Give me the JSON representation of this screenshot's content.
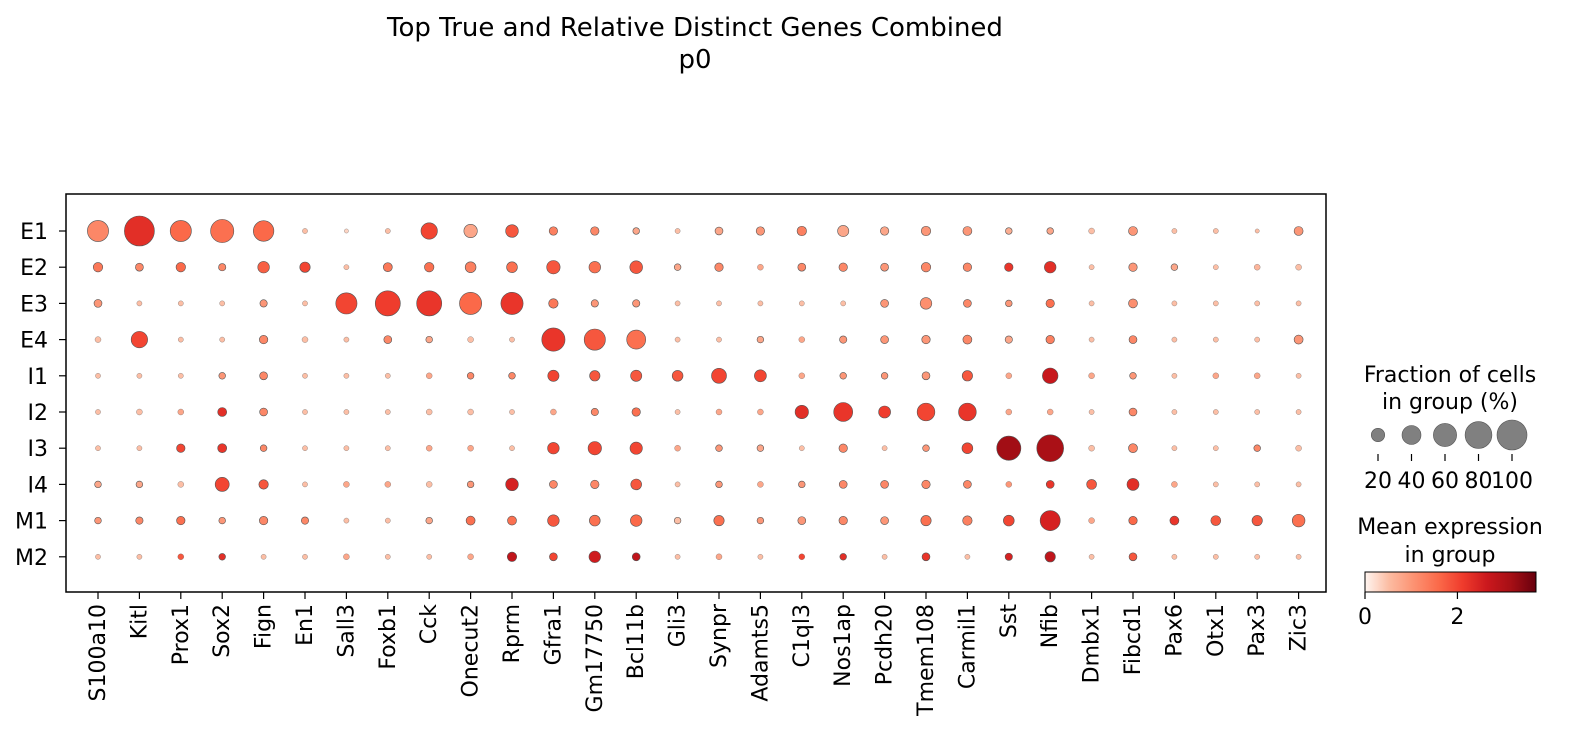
{
  "chart_data": {
    "type": "dotplot",
    "title": "Top True and Relative Distinct Genes Combined",
    "subtitle": "p0",
    "genes": [
      "S100a10",
      "Kitl",
      "Prox1",
      "Sox2",
      "Fign",
      "En1",
      "Sall3",
      "Foxb1",
      "Cck",
      "Onecut2",
      "Rprm",
      "Gfra1",
      "Gm17750",
      "Bcl11b",
      "Gli3",
      "Synpr",
      "Adamts5",
      "C1ql3",
      "Nos1ap",
      "Pcdh20",
      "Tmem108",
      "Carmil1",
      "Sst",
      "Nfib",
      "Dmbx1",
      "Fibcd1",
      "Pax6",
      "Otx1",
      "Pax3",
      "Zic3"
    ],
    "groups": [
      "E1",
      "E2",
      "E3",
      "E4",
      "I1",
      "I2",
      "I3",
      "I4",
      "M1",
      "M2"
    ],
    "fraction_pct": [
      [
        50,
        100,
        50,
        60,
        47,
        3,
        2,
        3,
        30,
        20,
        18,
        8,
        8,
        5,
        3,
        7,
        8,
        10,
        14,
        8,
        10,
        9,
        5,
        5,
        4,
        9,
        3,
        3,
        2,
        9
      ],
      [
        10,
        7,
        10,
        6,
        15,
        12,
        3,
        9,
        10,
        13,
        13,
        20,
        15,
        18,
        5,
        8,
        4,
        7,
        8,
        7,
        10,
        8,
        8,
        15,
        3,
        8,
        5,
        3,
        4,
        4
      ],
      [
        7,
        3,
        3,
        3,
        6,
        3,
        50,
        70,
        70,
        55,
        55,
        10,
        6,
        6,
        3,
        3,
        3,
        3,
        3,
        7,
        15,
        7,
        5,
        8,
        3,
        9,
        3,
        3,
        3,
        3
      ],
      [
        4,
        30,
        3,
        3,
        8,
        4,
        3,
        7,
        5,
        4,
        3,
        60,
        50,
        40,
        3,
        3,
        5,
        4,
        6,
        7,
        8,
        9,
        6,
        8,
        3,
        7,
        3,
        3,
        3,
        9
      ],
      [
        3,
        3,
        3,
        5,
        7,
        3,
        3,
        3,
        4,
        5,
        5,
        14,
        12,
        14,
        13,
        25,
        16,
        4,
        5,
        5,
        7,
        12,
        4,
        27,
        4,
        5,
        3,
        4,
        4,
        3
      ],
      [
        3,
        4,
        4,
        9,
        7,
        3,
        3,
        3,
        4,
        4,
        3,
        4,
        6,
        8,
        3,
        4,
        4,
        20,
        40,
        16,
        35,
        35,
        4,
        4,
        3,
        7,
        3,
        3,
        3,
        3
      ],
      [
        3,
        3,
        8,
        9,
        5,
        3,
        3,
        3,
        4,
        4,
        3,
        15,
        20,
        17,
        4,
        5,
        5,
        3,
        8,
        3,
        5,
        13,
        65,
        80,
        4,
        9,
        3,
        3,
        5,
        4
      ],
      [
        5,
        5,
        4,
        22,
        10,
        3,
        4,
        4,
        4,
        5,
        18,
        7,
        8,
        13,
        3,
        5,
        4,
        5,
        7,
        7,
        8,
        7,
        4,
        7,
        11,
        16,
        4,
        3,
        3,
        3
      ],
      [
        5,
        6,
        8,
        5,
        8,
        6,
        3,
        3,
        5,
        9,
        9,
        15,
        13,
        15,
        5,
        12,
        5,
        7,
        8,
        7,
        12,
        10,
        13,
        45,
        4,
        8,
        9,
        11,
        12,
        18
      ],
      [
        3,
        3,
        4,
        5,
        3,
        3,
        4,
        3,
        3,
        4,
        10,
        7,
        15,
        7,
        3,
        4,
        3,
        4,
        5,
        3,
        7,
        3,
        6,
        12,
        3,
        7,
        3,
        3,
        3,
        3
      ]
    ],
    "mean_expression": [
      [
        1.2,
        2.3,
        1.6,
        1.5,
        1.6,
        0.5,
        0.3,
        0.5,
        2.0,
        0.8,
        1.8,
        1.3,
        1.2,
        0.8,
        0.5,
        0.8,
        1.0,
        1.3,
        0.8,
        0.8,
        1.0,
        1.0,
        0.7,
        0.8,
        0.5,
        1.0,
        0.5,
        0.5,
        0.5,
        1.0
      ],
      [
        1.4,
        1.2,
        1.6,
        1.2,
        1.7,
        2.0,
        0.5,
        1.4,
        1.5,
        1.3,
        1.5,
        1.8,
        1.5,
        1.8,
        0.8,
        1.2,
        0.8,
        1.2,
        1.2,
        1.0,
        1.2,
        1.2,
        2.2,
        2.3,
        0.5,
        1.0,
        0.8,
        0.5,
        0.6,
        0.5
      ],
      [
        1.0,
        0.5,
        0.5,
        0.5,
        1.0,
        0.5,
        2.0,
        2.1,
        2.2,
        1.6,
        2.2,
        1.4,
        1.0,
        1.0,
        0.5,
        0.5,
        0.5,
        0.5,
        0.5,
        1.0,
        1.1,
        1.2,
        1.0,
        1.5,
        0.5,
        1.1,
        0.5,
        0.5,
        0.5,
        0.5
      ],
      [
        0.5,
        2.0,
        0.5,
        0.5,
        1.2,
        0.5,
        0.5,
        1.2,
        0.8,
        0.5,
        0.5,
        2.2,
        1.8,
        1.5,
        0.5,
        0.5,
        0.8,
        0.8,
        1.0,
        1.0,
        1.0,
        1.2,
        0.8,
        1.3,
        0.5,
        1.2,
        0.5,
        0.5,
        0.5,
        1.0
      ],
      [
        0.5,
        0.5,
        0.5,
        1.0,
        1.2,
        0.5,
        0.5,
        0.5,
        0.8,
        1.2,
        1.2,
        2.0,
        1.8,
        1.8,
        1.8,
        2.0,
        2.0,
        0.8,
        1.0,
        1.0,
        1.0,
        1.8,
        0.8,
        2.7,
        0.8,
        1.0,
        0.5,
        0.8,
        0.8,
        0.5
      ],
      [
        0.5,
        0.5,
        0.8,
        2.3,
        1.2,
        0.5,
        0.5,
        0.5,
        0.5,
        0.5,
        0.5,
        0.8,
        1.2,
        1.5,
        0.5,
        0.8,
        0.8,
        2.3,
        2.2,
        2.1,
        2.0,
        2.2,
        0.8,
        0.8,
        0.5,
        1.2,
        0.5,
        0.5,
        0.5,
        0.5
      ],
      [
        0.5,
        0.5,
        2.0,
        2.2,
        1.2,
        0.5,
        0.5,
        0.5,
        0.8,
        0.8,
        0.5,
        2.0,
        2.0,
        2.0,
        0.8,
        1.0,
        0.8,
        0.5,
        1.2,
        0.5,
        1.0,
        2.0,
        3.2,
        3.1,
        0.5,
        1.2,
        0.5,
        0.5,
        1.2,
        0.5
      ],
      [
        0.8,
        0.8,
        0.5,
        2.0,
        1.8,
        0.5,
        0.8,
        0.8,
        0.5,
        1.0,
        2.5,
        1.2,
        1.2,
        1.8,
        0.5,
        1.0,
        0.8,
        1.0,
        1.2,
        1.2,
        1.2,
        1.2,
        1.0,
        2.2,
        1.8,
        2.3,
        0.8,
        0.5,
        0.5,
        0.5
      ],
      [
        1.0,
        1.2,
        1.5,
        1.0,
        1.2,
        1.2,
        0.5,
        0.5,
        0.8,
        1.5,
        1.5,
        1.8,
        1.5,
        1.6,
        0.5,
        1.5,
        1.0,
        1.0,
        1.2,
        1.0,
        1.5,
        1.3,
        2.0,
        2.5,
        0.8,
        1.6,
        2.2,
        1.8,
        1.8,
        1.5
      ],
      [
        0.5,
        0.5,
        1.8,
        2.3,
        0.5,
        0.5,
        0.8,
        0.5,
        0.5,
        0.8,
        2.8,
        2.0,
        2.6,
        2.8,
        0.5,
        0.8,
        0.5,
        2.0,
        2.3,
        0.5,
        2.2,
        0.5,
        2.5,
        2.8,
        0.5,
        1.8,
        0.5,
        0.5,
        0.5,
        0.5
      ]
    ],
    "size_legend": {
      "title_line1": "Fraction of cells",
      "title_line2": "in group (%)",
      "values": [
        20,
        40,
        60,
        80,
        100
      ],
      "labels": [
        "20",
        "40",
        "60",
        "80",
        "100"
      ]
    },
    "color_legend": {
      "title_line1": "Mean expression",
      "title_line2": "in group",
      "range": [
        0,
        3.7
      ],
      "ticks": [
        0,
        2
      ],
      "tick_labels": [
        "0",
        "2"
      ],
      "colormap": [
        "#fff5f0",
        "#fcbba1",
        "#fc9272",
        "#fb6a4a",
        "#ef3b2c",
        "#cb181d",
        "#a50f15",
        "#67000d"
      ]
    }
  }
}
